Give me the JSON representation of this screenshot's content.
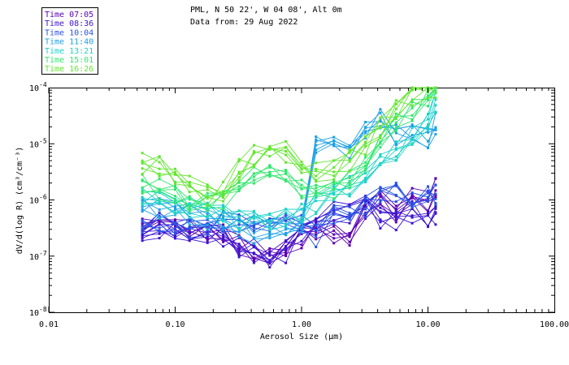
{
  "chart_data": {
    "type": "line",
    "title_line1": "PML, N 50 22', W 04 08', Alt 0m",
    "title_line2": "Data from: 29 Aug 2022",
    "xlabel": "Aerosol Size (μm)",
    "ylabel": "dV/d(log R) (cm³/cm⁻³)",
    "x_scale": "log",
    "y_scale": "log",
    "xlim": [
      0.01,
      100
    ],
    "ylim": [
      1e-08,
      0.0001
    ],
    "x_ticks": [
      {
        "value": 0.01,
        "label": "0.01"
      },
      {
        "value": 0.1,
        "label": "0.10"
      },
      {
        "value": 1,
        "label": "1.00"
      },
      {
        "value": 10,
        "label": "10.00"
      },
      {
        "value": 100,
        "label": "100.00"
      }
    ],
    "y_ticks": [
      {
        "value": 1e-08,
        "base": "10",
        "exp": "-8"
      },
      {
        "value": 1e-07,
        "base": "10",
        "exp": "-7"
      },
      {
        "value": 1e-06,
        "base": "10",
        "exp": "-6"
      },
      {
        "value": 1e-05,
        "base": "10",
        "exp": "-5"
      },
      {
        "value": 0.0001,
        "base": "10",
        "exp": "-4"
      }
    ],
    "legend_position": "top-left",
    "size_bins": [
      0.055,
      0.075,
      0.1,
      0.13,
      0.18,
      0.24,
      0.32,
      0.42,
      0.56,
      0.75,
      1.0,
      1.3,
      1.8,
      2.4,
      3.2,
      4.2,
      5.6,
      7.5,
      10.0,
      11.5
    ],
    "series": [
      {
        "name": "Time 07:05",
        "color": "#5a00b4",
        "values": [
          3.5e-07,
          4e-07,
          3.2e-07,
          3e-07,
          2.6e-07,
          2.4e-07,
          1.6e-07,
          1.3e-07,
          1e-07,
          1.3e-07,
          2e-07,
          2.5e-07,
          2.4e-07,
          2.3e-07,
          6.5e-07,
          1.1e-06,
          5e-07,
          1.1e-06,
          9.5e-07,
          1.7e-06
        ]
      },
      {
        "name": "Time 08:36",
        "color": "#3c14d2",
        "values": [
          2.5e-07,
          3.2e-07,
          3e-07,
          2.6e-07,
          2.6e-07,
          2.1e-07,
          1.4e-07,
          1.1e-07,
          1e-07,
          1.2e-07,
          2.6e-07,
          4.3e-07,
          6.5e-07,
          5.6e-07,
          9e-07,
          4.6e-07,
          4e-07,
          6e-07,
          4.8e-07,
          4.9e-07
        ]
      },
      {
        "name": "Time 10:04",
        "color": "#2850e6",
        "values": [
          2.9e-07,
          4e-07,
          3.6e-07,
          3e-07,
          3.3e-07,
          4e-07,
          4.2e-07,
          4.1e-07,
          3.8e-07,
          5.7e-07,
          4.1e-07,
          2.3e-07,
          6e-07,
          5.6e-07,
          7.5e-07,
          1.1e-06,
          1.4e-06,
          1.1e-06,
          1.4e-06,
          1.2e-06
        ]
      },
      {
        "name": "Time 11:40",
        "color": "#1ea0e6",
        "values": [
          9e-07,
          7e-07,
          7.5e-07,
          5.5e-07,
          4.3e-07,
          4.5e-07,
          3.5e-07,
          2.6e-07,
          3e-07,
          2.6e-07,
          3.6e-07,
          9e-06,
          8.5e-06,
          6e-06,
          2e-05,
          3e-05,
          1.5e-05,
          1.5e-05,
          1.2e-05,
          2.3e-05
        ]
      },
      {
        "name": "Time 13:21",
        "color": "#1ed2c8",
        "values": [
          1.1e-06,
          9.5e-07,
          8.5e-07,
          7e-07,
          6e-07,
          5.5e-07,
          4.5e-07,
          4e-07,
          4.5e-07,
          4.8e-07,
          6.5e-07,
          9e-07,
          1.3e-06,
          1.8e-06,
          2.8e-06,
          4.5e-06,
          8e-06,
          1.3e-05,
          2.3e-05,
          5.5e-05
        ]
      },
      {
        "name": "Time 15:01",
        "color": "#32e66e",
        "values": [
          1.8e-06,
          1.5e-06,
          1.2e-06,
          1e-06,
          9e-07,
          1e-06,
          2.2e-06,
          2.8e-06,
          3.5e-06,
          2.8e-06,
          1.6e-06,
          1.3e-06,
          1.6e-06,
          2.6e-06,
          4.5e-06,
          1.2e-05,
          2.3e-05,
          4e-05,
          6.5e-05,
          9e-05
        ]
      },
      {
        "name": "Time 16:26",
        "color": "#64e632",
        "values": [
          4.5e-06,
          3.8e-06,
          2.5e-06,
          1.8e-06,
          1.2e-06,
          1.5e-06,
          3.5e-06,
          6e-06,
          8.5e-06,
          7e-06,
          4e-06,
          3e-06,
          3.5e-06,
          5e-06,
          9e-06,
          2e-05,
          3.8e-05,
          6.5e-05,
          9.5e-05,
          9.8e-05
        ]
      }
    ]
  }
}
